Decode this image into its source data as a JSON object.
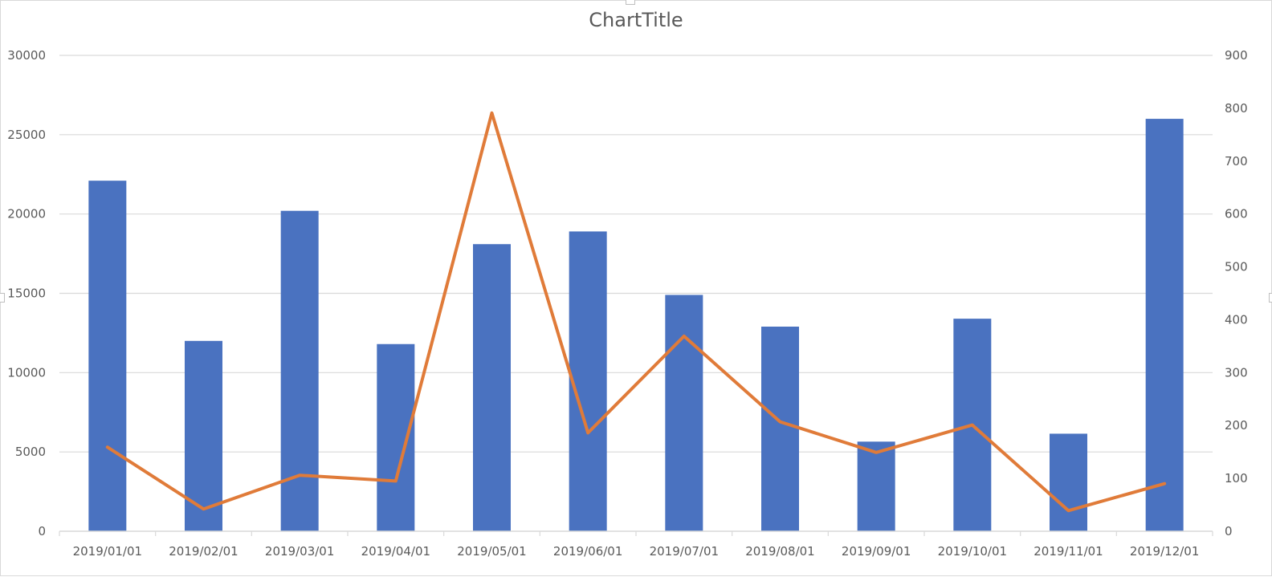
{
  "chart_data": {
    "type": "bar",
    "title": "ChartTitle",
    "xlabel": "",
    "ylabel": "",
    "y2label": "",
    "categories": [
      "2019/01/01",
      "2019/02/01",
      "2019/03/01",
      "2019/04/01",
      "2019/05/01",
      "2019/06/01",
      "2019/07/01",
      "2019/08/01",
      "2019/09/01",
      "2019/10/01",
      "2019/11/01",
      "2019/12/01"
    ],
    "series": [
      {
        "type": "bar",
        "axis": "left",
        "color": "#4a72c0",
        "values": [
          22100,
          12000,
          20200,
          11800,
          18100,
          18900,
          14900,
          12900,
          5650,
          13400,
          6150,
          26000
        ]
      },
      {
        "type": "line",
        "axis": "right",
        "color": "#e07b39",
        "values": [
          159,
          42,
          106,
          95,
          791,
          186,
          369,
          207,
          149,
          201,
          39,
          90
        ]
      }
    ],
    "ylim": [
      0,
      30000
    ],
    "yticks": [
      0,
      5000,
      10000,
      15000,
      20000,
      25000,
      30000
    ],
    "y2lim": [
      0,
      900
    ],
    "y2ticks": [
      0,
      100,
      200,
      300,
      400,
      500,
      600,
      700,
      800,
      900
    ],
    "grid": true,
    "legend": "none"
  }
}
